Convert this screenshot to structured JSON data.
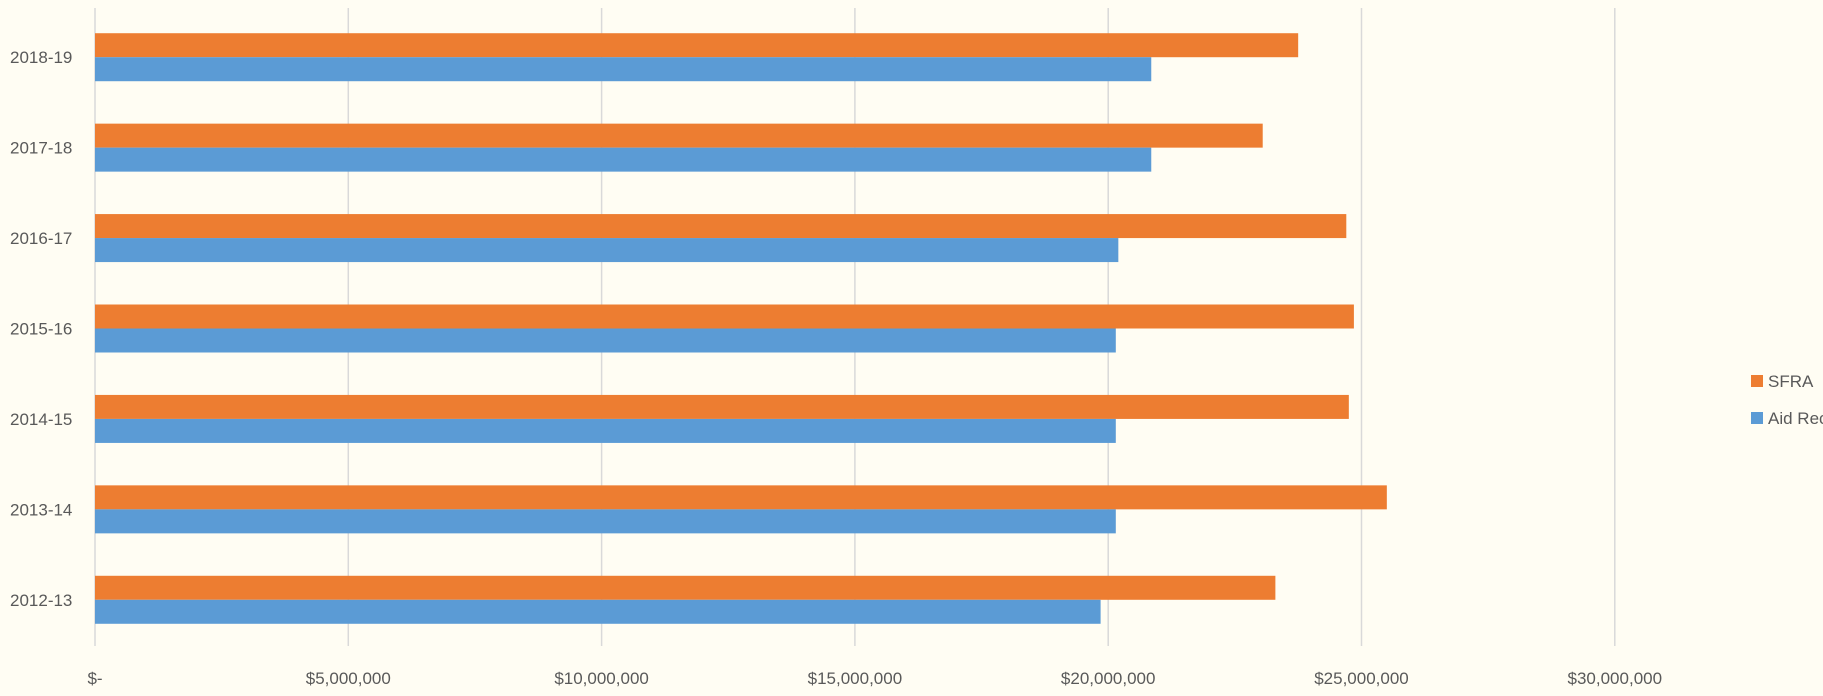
{
  "chart_data": {
    "type": "bar",
    "orientation": "horizontal",
    "categories": [
      "2012-13",
      "2013-14",
      "2014-15",
      "2015-16",
      "2016-17",
      "2017-18",
      "2018-19"
    ],
    "series": [
      {
        "name": "SFRA",
        "color": "#ed7d31",
        "values": [
          23300000,
          25500000,
          24750000,
          24850000,
          24700000,
          23050000,
          23750000
        ]
      },
      {
        "name": "Aid Received",
        "color": "#5b9bd5",
        "values": [
          19850000,
          20150000,
          20150000,
          20150000,
          20200000,
          20850000,
          20850000
        ]
      }
    ],
    "xlim": [
      0,
      35000000
    ],
    "xticks": [
      0,
      5000000,
      10000000,
      15000000,
      20000000,
      25000000,
      30000000
    ],
    "xtick_labels": [
      "$-",
      "$5,000,000",
      "$10,000,000",
      "$15,000,000",
      "$20,000,000",
      "$25,000,000",
      "$30,000,000"
    ],
    "title": "",
    "xlabel": "",
    "ylabel": "",
    "grid": "vertical",
    "legend_position": "right",
    "legend_order": [
      "SFRA",
      "Aid Received"
    ],
    "background_color": "#fffdf3",
    "gridline_color": "#d9d9d9"
  }
}
